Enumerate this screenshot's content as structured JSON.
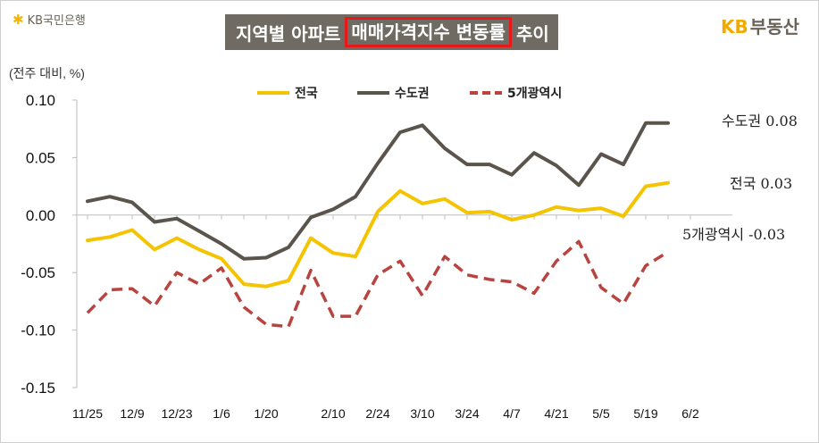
{
  "header": {
    "bank_logo": "KB국민은행",
    "bank_logo_icon": "kb-star-icon",
    "title_prefix": "지역별 아파트",
    "title_highlight": "매매가격지수 변동률",
    "title_suffix": "추이",
    "brand_kb": "KB",
    "brand_land": "부동산"
  },
  "chart_data": {
    "type": "line",
    "unit_label": "(전주 대비, %)",
    "x": [
      "11/25",
      "12/2",
      "12/9",
      "12/16",
      "12/23",
      "12/30",
      "1/6",
      "1/13",
      "1/20",
      "1/27",
      "2/3",
      "2/10",
      "2/17",
      "2/24",
      "3/3",
      "3/10",
      "3/17",
      "3/24",
      "3/31",
      "4/7",
      "4/14",
      "4/21",
      "4/28",
      "5/5",
      "5/12",
      "5/19",
      "5/26",
      "6/2"
    ],
    "x_tick_labels": [
      "11/25",
      "12/9",
      "12/23",
      "1/6",
      "1/20",
      "2/10",
      "2/24",
      "3/10",
      "3/24",
      "4/7",
      "4/21",
      "5/5",
      "5/19",
      "6/2"
    ],
    "ylim": [
      -0.15,
      0.1
    ],
    "y_ticks": [
      "0.10",
      "0.05",
      "0.00",
      "-0.05",
      "-0.10",
      "-0.15"
    ],
    "y_tick_values": [
      0.1,
      0.05,
      0.0,
      -0.05,
      -0.1,
      -0.15
    ],
    "legend_position": "top-center",
    "grid": false,
    "series": [
      {
        "name": "전국",
        "color": "#f5c400",
        "dash": "solid",
        "values": [
          -0.022,
          -0.019,
          -0.013,
          -0.03,
          -0.02,
          -0.03,
          -0.038,
          -0.06,
          -0.062,
          -0.057,
          -0.02,
          -0.033,
          -0.036,
          0.003,
          0.021,
          0.01,
          0.014,
          0.002,
          0.003,
          -0.004,
          0.0,
          0.007,
          0.004,
          0.006,
          -0.001,
          0.025,
          0.028,
          null
        ],
        "end_label": "전국 0.03"
      },
      {
        "name": "수도권",
        "color": "#5a544d",
        "dash": "solid",
        "values": [
          0.012,
          0.016,
          0.011,
          -0.006,
          -0.003,
          -0.014,
          -0.025,
          -0.038,
          -0.037,
          -0.028,
          -0.002,
          0.005,
          0.016,
          0.045,
          0.072,
          0.078,
          0.058,
          0.044,
          0.044,
          0.035,
          0.054,
          0.043,
          0.026,
          0.053,
          0.044,
          0.08,
          0.08,
          null
        ],
        "end_label": "수도권 0.08"
      },
      {
        "name": "5개광역시",
        "color": "#b8433f",
        "dash": "dashed",
        "values": [
          -0.085,
          -0.065,
          -0.064,
          -0.079,
          -0.05,
          -0.06,
          -0.046,
          -0.08,
          -0.095,
          -0.097,
          -0.048,
          -0.088,
          -0.088,
          -0.052,
          -0.04,
          -0.07,
          -0.036,
          -0.052,
          -0.056,
          -0.058,
          -0.068,
          -0.04,
          -0.023,
          -0.063,
          -0.077,
          -0.044,
          -0.032,
          null
        ],
        "end_label": "5개광역시 -0.03"
      }
    ]
  },
  "colors": {
    "title_bg": "#6f6b62",
    "title_highlight_border": "#e8191b",
    "brand_yellow": "#f2a900"
  }
}
